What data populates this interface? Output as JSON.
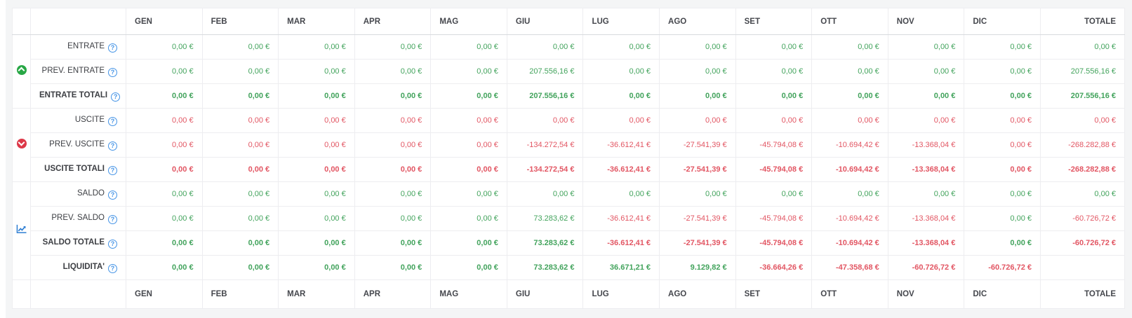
{
  "colors": {
    "value_green": "#42a35c",
    "value_red": "#e25663",
    "help_blue": "#4493e6",
    "icon_green": "#28a745",
    "icon_red": "#dd3848",
    "icon_blue": "#2d7dd2",
    "header_text": "#45474d"
  },
  "table": {
    "column_headers": [
      "GEN",
      "FEB",
      "MAR",
      "APR",
      "MAG",
      "GIU",
      "LUG",
      "AGO",
      "SET",
      "OTT",
      "NOV",
      "DIC"
    ],
    "total_header": "TOTALE",
    "groups": [
      {
        "name": "entrate",
        "icon": "circle-arrow-up-icon",
        "rows": [
          {
            "label": "ENTRATE",
            "bold": false,
            "cells": [
              {
                "v": "0,00 €",
                "c": "green"
              },
              {
                "v": "0,00 €",
                "c": "green"
              },
              {
                "v": "0,00 €",
                "c": "green"
              },
              {
                "v": "0,00 €",
                "c": "green"
              },
              {
                "v": "0,00 €",
                "c": "green"
              },
              {
                "v": "0,00 €",
                "c": "green"
              },
              {
                "v": "0,00 €",
                "c": "green"
              },
              {
                "v": "0,00 €",
                "c": "green"
              },
              {
                "v": "0,00 €",
                "c": "green"
              },
              {
                "v": "0,00 €",
                "c": "green"
              },
              {
                "v": "0,00 €",
                "c": "green"
              },
              {
                "v": "0,00 €",
                "c": "green"
              },
              {
                "v": "0,00 €",
                "c": "green"
              }
            ]
          },
          {
            "label": "PREV. ENTRATE",
            "bold": false,
            "cells": [
              {
                "v": "0,00 €",
                "c": "green"
              },
              {
                "v": "0,00 €",
                "c": "green"
              },
              {
                "v": "0,00 €",
                "c": "green"
              },
              {
                "v": "0,00 €",
                "c": "green"
              },
              {
                "v": "0,00 €",
                "c": "green"
              },
              {
                "v": "207.556,16 €",
                "c": "green"
              },
              {
                "v": "0,00 €",
                "c": "green"
              },
              {
                "v": "0,00 €",
                "c": "green"
              },
              {
                "v": "0,00 €",
                "c": "green"
              },
              {
                "v": "0,00 €",
                "c": "green"
              },
              {
                "v": "0,00 €",
                "c": "green"
              },
              {
                "v": "0,00 €",
                "c": "green"
              },
              {
                "v": "207.556,16 €",
                "c": "green"
              }
            ]
          },
          {
            "label": "ENTRATE TOTALI",
            "bold": true,
            "cells": [
              {
                "v": "0,00 €",
                "c": "green"
              },
              {
                "v": "0,00 €",
                "c": "green"
              },
              {
                "v": "0,00 €",
                "c": "green"
              },
              {
                "v": "0,00 €",
                "c": "green"
              },
              {
                "v": "0,00 €",
                "c": "green"
              },
              {
                "v": "207.556,16 €",
                "c": "green"
              },
              {
                "v": "0,00 €",
                "c": "green"
              },
              {
                "v": "0,00 €",
                "c": "green"
              },
              {
                "v": "0,00 €",
                "c": "green"
              },
              {
                "v": "0,00 €",
                "c": "green"
              },
              {
                "v": "0,00 €",
                "c": "green"
              },
              {
                "v": "0,00 €",
                "c": "green"
              },
              {
                "v": "207.556,16 €",
                "c": "green"
              }
            ]
          }
        ]
      },
      {
        "name": "uscite",
        "icon": "circle-arrow-down-icon",
        "rows": [
          {
            "label": "USCITE",
            "bold": false,
            "cells": [
              {
                "v": "0,00 €",
                "c": "red"
              },
              {
                "v": "0,00 €",
                "c": "red"
              },
              {
                "v": "0,00 €",
                "c": "red"
              },
              {
                "v": "0,00 €",
                "c": "red"
              },
              {
                "v": "0,00 €",
                "c": "red"
              },
              {
                "v": "0,00 €",
                "c": "red"
              },
              {
                "v": "0,00 €",
                "c": "red"
              },
              {
                "v": "0,00 €",
                "c": "red"
              },
              {
                "v": "0,00 €",
                "c": "red"
              },
              {
                "v": "0,00 €",
                "c": "red"
              },
              {
                "v": "0,00 €",
                "c": "red"
              },
              {
                "v": "0,00 €",
                "c": "red"
              },
              {
                "v": "0,00 €",
                "c": "red"
              }
            ]
          },
          {
            "label": "PREV. USCITE",
            "bold": false,
            "cells": [
              {
                "v": "0,00 €",
                "c": "red"
              },
              {
                "v": "0,00 €",
                "c": "red"
              },
              {
                "v": "0,00 €",
                "c": "red"
              },
              {
                "v": "0,00 €",
                "c": "red"
              },
              {
                "v": "0,00 €",
                "c": "red"
              },
              {
                "v": "-134.272,54 €",
                "c": "red"
              },
              {
                "v": "-36.612,41 €",
                "c": "red"
              },
              {
                "v": "-27.541,39 €",
                "c": "red"
              },
              {
                "v": "-45.794,08 €",
                "c": "red"
              },
              {
                "v": "-10.694,42 €",
                "c": "red"
              },
              {
                "v": "-13.368,04 €",
                "c": "red"
              },
              {
                "v": "0,00 €",
                "c": "red"
              },
              {
                "v": "-268.282,88 €",
                "c": "red"
              }
            ]
          },
          {
            "label": "USCITE TOTALI",
            "bold": true,
            "cells": [
              {
                "v": "0,00 €",
                "c": "red"
              },
              {
                "v": "0,00 €",
                "c": "red"
              },
              {
                "v": "0,00 €",
                "c": "red"
              },
              {
                "v": "0,00 €",
                "c": "red"
              },
              {
                "v": "0,00 €",
                "c": "red"
              },
              {
                "v": "-134.272,54 €",
                "c": "red"
              },
              {
                "v": "-36.612,41 €",
                "c": "red"
              },
              {
                "v": "-27.541,39 €",
                "c": "red"
              },
              {
                "v": "-45.794,08 €",
                "c": "red"
              },
              {
                "v": "-10.694,42 €",
                "c": "red"
              },
              {
                "v": "-13.368,04 €",
                "c": "red"
              },
              {
                "v": "0,00 €",
                "c": "red"
              },
              {
                "v": "-268.282,88 €",
                "c": "red"
              }
            ]
          }
        ]
      },
      {
        "name": "saldo",
        "icon": "chart-line-icon",
        "rows": [
          {
            "label": "SALDO",
            "bold": false,
            "cells": [
              {
                "v": "0,00 €",
                "c": "green"
              },
              {
                "v": "0,00 €",
                "c": "green"
              },
              {
                "v": "0,00 €",
                "c": "green"
              },
              {
                "v": "0,00 €",
                "c": "green"
              },
              {
                "v": "0,00 €",
                "c": "green"
              },
              {
                "v": "0,00 €",
                "c": "green"
              },
              {
                "v": "0,00 €",
                "c": "green"
              },
              {
                "v": "0,00 €",
                "c": "green"
              },
              {
                "v": "0,00 €",
                "c": "green"
              },
              {
                "v": "0,00 €",
                "c": "green"
              },
              {
                "v": "0,00 €",
                "c": "green"
              },
              {
                "v": "0,00 €",
                "c": "green"
              },
              {
                "v": "0,00 €",
                "c": "green"
              }
            ]
          },
          {
            "label": "PREV. SALDO",
            "bold": false,
            "cells": [
              {
                "v": "0,00 €",
                "c": "green"
              },
              {
                "v": "0,00 €",
                "c": "green"
              },
              {
                "v": "0,00 €",
                "c": "green"
              },
              {
                "v": "0,00 €",
                "c": "green"
              },
              {
                "v": "0,00 €",
                "c": "green"
              },
              {
                "v": "73.283,62 €",
                "c": "green"
              },
              {
                "v": "-36.612,41 €",
                "c": "red"
              },
              {
                "v": "-27.541,39 €",
                "c": "red"
              },
              {
                "v": "-45.794,08 €",
                "c": "red"
              },
              {
                "v": "-10.694,42 €",
                "c": "red"
              },
              {
                "v": "-13.368,04 €",
                "c": "red"
              },
              {
                "v": "0,00 €",
                "c": "green"
              },
              {
                "v": "-60.726,72 €",
                "c": "red"
              }
            ]
          },
          {
            "label": "SALDO TOTALE",
            "bold": true,
            "cells": [
              {
                "v": "0,00 €",
                "c": "green"
              },
              {
                "v": "0,00 €",
                "c": "green"
              },
              {
                "v": "0,00 €",
                "c": "green"
              },
              {
                "v": "0,00 €",
                "c": "green"
              },
              {
                "v": "0,00 €",
                "c": "green"
              },
              {
                "v": "73.283,62 €",
                "c": "green"
              },
              {
                "v": "-36.612,41 €",
                "c": "red"
              },
              {
                "v": "-27.541,39 €",
                "c": "red"
              },
              {
                "v": "-45.794,08 €",
                "c": "red"
              },
              {
                "v": "-10.694,42 €",
                "c": "red"
              },
              {
                "v": "-13.368,04 €",
                "c": "red"
              },
              {
                "v": "0,00 €",
                "c": "green"
              },
              {
                "v": "-60.726,72 €",
                "c": "red"
              }
            ]
          },
          {
            "label": "LIQUIDITA'",
            "bold": true,
            "cells": [
              {
                "v": "0,00 €",
                "c": "green"
              },
              {
                "v": "0,00 €",
                "c": "green"
              },
              {
                "v": "0,00 €",
                "c": "green"
              },
              {
                "v": "0,00 €",
                "c": "green"
              },
              {
                "v": "0,00 €",
                "c": "green"
              },
              {
                "v": "73.283,62 €",
                "c": "green"
              },
              {
                "v": "36.671,21 €",
                "c": "green"
              },
              {
                "v": "9.129,82 €",
                "c": "green"
              },
              {
                "v": "-36.664,26 €",
                "c": "red"
              },
              {
                "v": "-47.358,68 €",
                "c": "red"
              },
              {
                "v": "-60.726,72 €",
                "c": "red"
              },
              {
                "v": "-60.726,72 €",
                "c": "red"
              },
              {
                "v": "",
                "c": "none"
              }
            ]
          }
        ]
      }
    ]
  }
}
